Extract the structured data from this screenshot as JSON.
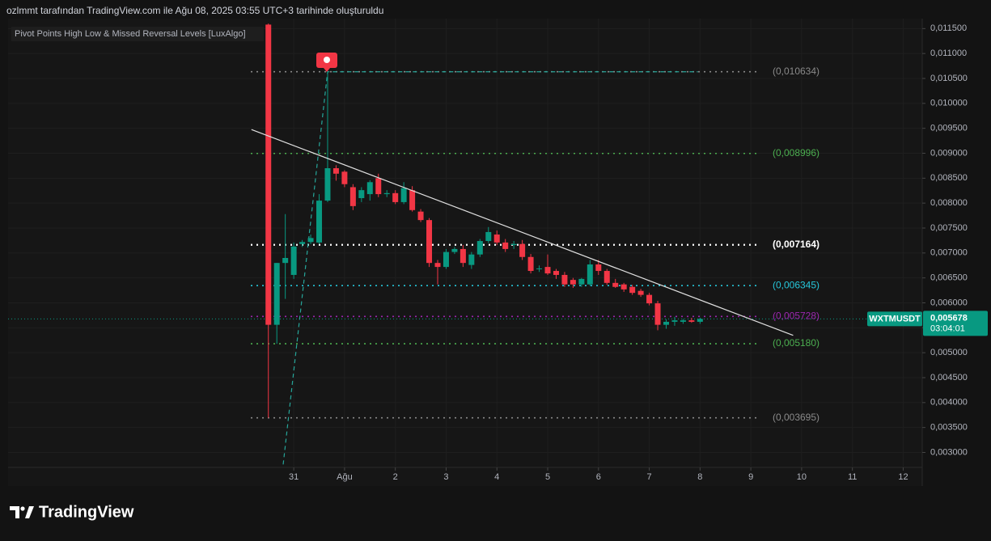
{
  "header": "ozlmmt tarafından TradingView.com ile Ağu 08, 2025 03:55 UTC+3 tarihinde oluşturuldu",
  "footer": "TradingView",
  "chart_data": {
    "type": "candlestick",
    "title": "Pivot Points High Low & Missed Reversal Levels [LuxAlgo]",
    "x": [
      -12,
      -8,
      -4,
      0,
      4,
      8,
      12,
      16,
      20,
      24,
      28,
      32,
      36,
      40,
      44,
      48,
      52,
      56,
      60,
      64,
      68,
      72,
      76,
      80,
      84,
      88,
      92,
      96,
      100,
      104,
      108,
      112,
      116,
      120,
      124,
      128,
      132,
      136,
      140,
      144,
      148,
      152,
      156,
      160,
      164,
      168,
      172,
      176,
      180,
      184,
      188,
      192
    ],
    "series": [
      {
        "name": "WXTMUSDT",
        "up_color": "#089981",
        "down_color": "#f23645",
        "open": [
          0.01158,
          0.00556,
          0.0068,
          0.00656,
          0.00718,
          0.00722,
          0.00721,
          0.00805,
          0.0087,
          0.00863,
          0.00832,
          0.0081,
          0.00818,
          0.0085,
          0.00818,
          0.0082,
          0.00802,
          0.00826,
          0.00783,
          0.00766,
          0.0068,
          0.00672,
          0.00702,
          0.00708,
          0.00676,
          0.00697,
          0.00724,
          0.00737,
          0.00721,
          0.00716,
          0.00718,
          0.00692,
          0.00668,
          0.00672,
          0.00664,
          0.00656,
          0.00646,
          0.00637,
          0.00637,
          0.00677,
          0.00664,
          0.0064,
          0.00637,
          0.00632,
          0.00624,
          0.00616,
          0.00599,
          0.00556,
          0.00562,
          0.00562,
          0.00565,
          0.00562
        ],
        "high": [
          0.0116,
          0.0068,
          0.00778,
          0.00721,
          0.00726,
          0.00737,
          0.00818,
          0.010634,
          0.00876,
          0.00866,
          0.00838,
          0.00832,
          0.00846,
          0.00859,
          0.00826,
          0.00826,
          0.00842,
          0.00834,
          0.00788,
          0.0077,
          0.00686,
          0.00708,
          0.00712,
          0.00716,
          0.00702,
          0.00728,
          0.00752,
          0.00745,
          0.00728,
          0.00724,
          0.00726,
          0.00698,
          0.00675,
          0.00697,
          0.00668,
          0.00662,
          0.0065,
          0.0065,
          0.00686,
          0.00686,
          0.00668,
          0.00648,
          0.0064,
          0.00636,
          0.00628,
          0.0062,
          0.00604,
          0.00567,
          0.00572,
          0.00568,
          0.0057,
          0.0057
        ],
        "low": [
          0.003695,
          0.00518,
          0.00608,
          0.00648,
          0.00712,
          0.00718,
          0.00718,
          0.00802,
          0.00845,
          0.00832,
          0.00786,
          0.00802,
          0.00805,
          0.00812,
          0.00812,
          0.00798,
          0.00798,
          0.00783,
          0.00762,
          0.00672,
          0.00637,
          0.00668,
          0.00698,
          0.00672,
          0.00668,
          0.00692,
          0.0072,
          0.00716,
          0.00702,
          0.00708,
          0.00686,
          0.00659,
          0.00662,
          0.00656,
          0.00648,
          0.00632,
          0.0063,
          0.00632,
          0.00634,
          0.00656,
          0.00636,
          0.0063,
          0.00622,
          0.00616,
          0.00612,
          0.00595,
          0.00545,
          0.00548,
          0.00554,
          0.00558,
          0.0056,
          0.00558
        ],
        "close": [
          0.00556,
          0.0068,
          0.0069,
          0.00713,
          0.00722,
          0.0073,
          0.00805,
          0.0087,
          0.00859,
          0.00838,
          0.00794,
          0.00826,
          0.00842,
          0.00818,
          0.0082,
          0.00802,
          0.0083,
          0.00786,
          0.00766,
          0.0068,
          0.00672,
          0.00702,
          0.00708,
          0.0068,
          0.00697,
          0.00724,
          0.00742,
          0.00721,
          0.00708,
          0.00718,
          0.00692,
          0.00664,
          0.00669,
          0.00659,
          0.00656,
          0.00637,
          0.00637,
          0.00648,
          0.00677,
          0.00664,
          0.0064,
          0.00632,
          0.00627,
          0.0062,
          0.00616,
          0.00599,
          0.00556,
          0.00562,
          0.00565,
          0.00565,
          0.00562,
          0.005678
        ]
      }
    ],
    "current_price": {
      "value": 0.005678,
      "label": "0,005678",
      "countdown": "03:04:01",
      "color": "#089981"
    },
    "levels": [
      {
        "value": 0.010634,
        "label": "(0,010634)",
        "color": "#8a8a8a"
      },
      {
        "value": 0.008996,
        "label": "(0,008996)",
        "color": "#4caf50"
      },
      {
        "value": 0.007164,
        "label": "(0,007164)",
        "color": "#ffffff"
      },
      {
        "value": 0.006345,
        "label": "(0,006345)",
        "color": "#26c6da"
      },
      {
        "value": 0.005728,
        "label": "(0,005728)",
        "color": "#9c27b0"
      },
      {
        "value": 0.00518,
        "label": "(0,005180)",
        "color": "#4caf50"
      },
      {
        "value": 0.003695,
        "label": "(0,003695)",
        "color": "#8a8a8a"
      }
    ],
    "trendline": {
      "x": [
        -20,
        236
      ],
      "y": [
        0.009476,
        0.005348
      ],
      "color": "#e0e0e0"
    },
    "pivot_line": {
      "x": [
        -5,
        16,
        191
      ],
      "y": [
        0.00276,
        0.010634,
        0.010634
      ],
      "color": "#26a69a"
    },
    "xlim": [
      -135,
      297
    ],
    "xticks": [
      {
        "value": 0,
        "label": "31"
      },
      {
        "value": 24,
        "label": "Ağu"
      },
      {
        "value": 48,
        "label": "2"
      },
      {
        "value": 72,
        "label": "3"
      },
      {
        "value": 96,
        "label": "4"
      },
      {
        "value": 120,
        "label": "5"
      },
      {
        "value": 144,
        "label": "6"
      },
      {
        "value": 168,
        "label": "7"
      },
      {
        "value": 192,
        "label": "8"
      },
      {
        "value": 216,
        "label": "9"
      },
      {
        "value": 240,
        "label": "10"
      },
      {
        "value": 264,
        "label": "11"
      },
      {
        "value": 288,
        "label": "12"
      }
    ],
    "ylim": [
      0.0027,
      0.0117
    ],
    "yticks": [
      {
        "value": 0.003,
        "label": "0,003000"
      },
      {
        "value": 0.0035,
        "label": "0,003500"
      },
      {
        "value": 0.004,
        "label": "0,004000"
      },
      {
        "value": 0.0045,
        "label": "0,004500"
      },
      {
        "value": 0.005,
        "label": "0,005000"
      },
      {
        "value": 0.0055,
        "label": "0,005500"
      },
      {
        "value": 0.006,
        "label": "0,006000"
      },
      {
        "value": 0.0065,
        "label": "0,006500"
      },
      {
        "value": 0.007,
        "label": "0,007000"
      },
      {
        "value": 0.0075,
        "label": "0,007500"
      },
      {
        "value": 0.008,
        "label": "0,008000"
      },
      {
        "value": 0.0085,
        "label": "0,008500"
      },
      {
        "value": 0.009,
        "label": "0,009000"
      },
      {
        "value": 0.0095,
        "label": "0,009500"
      },
      {
        "value": 0.01,
        "label": "0,010000"
      },
      {
        "value": 0.0105,
        "label": "0,010500"
      },
      {
        "value": 0.011,
        "label": "0,011000"
      },
      {
        "value": 0.0115,
        "label": "0,011500"
      }
    ],
    "grid": true
  }
}
